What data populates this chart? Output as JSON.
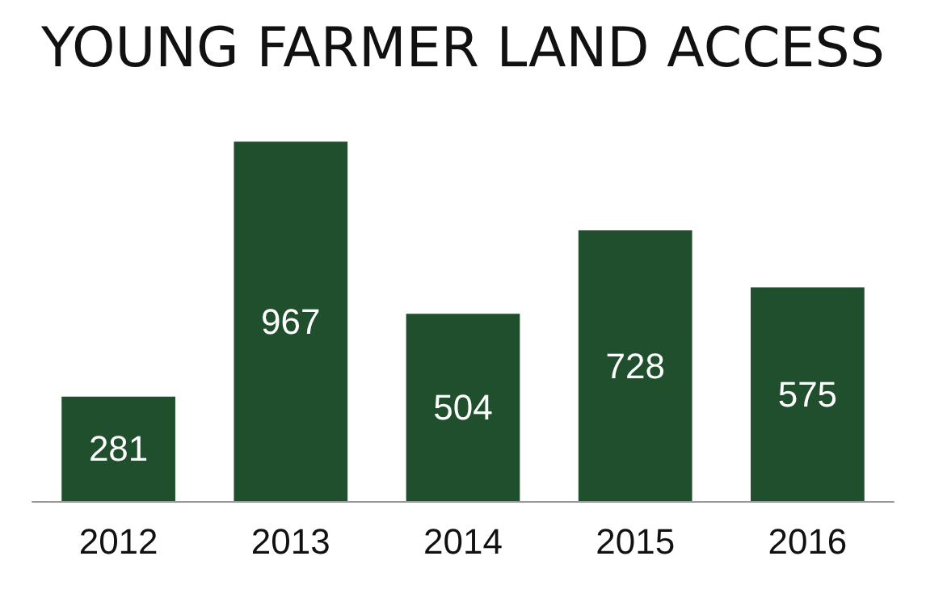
{
  "chart_data": {
    "type": "bar",
    "title": "YOUNG FARMER LAND ACCESS",
    "categories": [
      "2012",
      "2013",
      "2014",
      "2015",
      "2016"
    ],
    "values": [
      281,
      967,
      504,
      728,
      575
    ],
    "color": "#1f4f2c",
    "data_labels": true,
    "tick_labels": "x"
  }
}
